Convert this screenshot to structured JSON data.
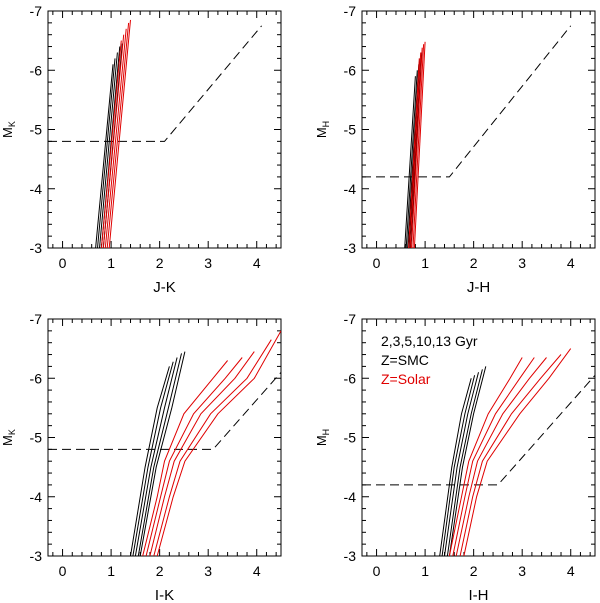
{
  "figure": {
    "legend_lines": [
      {
        "text": "2,3,5,10,13 Gyr",
        "color": "#000000"
      },
      {
        "text": "Z=SMC",
        "color": "#000000"
      },
      {
        "text": "Z=Solar",
        "color": "#e00000"
      }
    ]
  },
  "colors": {
    "smc": "#000000",
    "solar": "#e00000",
    "dashed": "#000000",
    "axis": "#000000"
  },
  "chart_data": [
    {
      "type": "line",
      "panel": "top-left",
      "xlabel": "J-K",
      "ylabel_main": "M",
      "ylabel_sub": "K",
      "xlim": [
        -0.3,
        4.5
      ],
      "ylim": [
        -3,
        -7
      ],
      "xticks": [
        0,
        1,
        2,
        3,
        4
      ],
      "yticks": [
        -3,
        -4,
        -5,
        -6,
        -7
      ],
      "series": [
        {
          "name": "SMC 2 Gyr",
          "group": "smc",
          "x": [
            0.68,
            1.04
          ],
          "y": [
            -3,
            -6.1
          ]
        },
        {
          "name": "SMC 3 Gyr",
          "group": "smc",
          "x": [
            0.72,
            1.08
          ],
          "y": [
            -3,
            -6.2
          ]
        },
        {
          "name": "SMC 5 Gyr",
          "group": "smc",
          "x": [
            0.76,
            1.13
          ],
          "y": [
            -3,
            -6.3
          ]
        },
        {
          "name": "SMC 10 Gyr",
          "group": "smc",
          "x": [
            0.8,
            1.18
          ],
          "y": [
            -3,
            -6.4
          ]
        },
        {
          "name": "SMC 13 Gyr",
          "group": "smc",
          "x": [
            0.84,
            1.23
          ],
          "y": [
            -3,
            -6.45
          ]
        },
        {
          "name": "Solar 2 Gyr",
          "group": "solar",
          "x": [
            0.8,
            1.21
          ],
          "y": [
            -3,
            -6.5
          ]
        },
        {
          "name": "Solar 3 Gyr",
          "group": "solar",
          "x": [
            0.84,
            1.26
          ],
          "y": [
            -3,
            -6.6
          ]
        },
        {
          "name": "Solar 5 Gyr",
          "group": "solar",
          "x": [
            0.88,
            1.31
          ],
          "y": [
            -3,
            -6.7
          ]
        },
        {
          "name": "Solar 10 Gyr",
          "group": "solar",
          "x": [
            0.92,
            1.36
          ],
          "y": [
            -3,
            -6.8
          ]
        },
        {
          "name": "Solar 13 Gyr",
          "group": "solar",
          "x": [
            0.96,
            1.4
          ],
          "y": [
            -3,
            -6.85
          ]
        }
      ],
      "dashed_limit": {
        "x": [
          -0.3,
          2.1,
          4.1
        ],
        "y": [
          -4.8,
          -4.8,
          -6.75
        ]
      }
    },
    {
      "type": "line",
      "panel": "top-right",
      "xlabel": "J-H",
      "ylabel_main": "M",
      "ylabel_sub": "H",
      "xlim": [
        -0.3,
        4.5
      ],
      "ylim": [
        -3,
        -7
      ],
      "xticks": [
        0,
        1,
        2,
        3,
        4
      ],
      "yticks": [
        -3,
        -4,
        -5,
        -6,
        -7
      ],
      "series": [
        {
          "name": "SMC 2 Gyr",
          "group": "smc",
          "x": [
            0.58,
            0.8
          ],
          "y": [
            -3,
            -5.9
          ]
        },
        {
          "name": "SMC 3 Gyr",
          "group": "smc",
          "x": [
            0.61,
            0.84
          ],
          "y": [
            -3,
            -6.0
          ]
        },
        {
          "name": "SMC 5 Gyr",
          "group": "smc",
          "x": [
            0.64,
            0.87
          ],
          "y": [
            -3,
            -6.1
          ]
        },
        {
          "name": "SMC 10 Gyr",
          "group": "smc",
          "x": [
            0.67,
            0.9
          ],
          "y": [
            -3,
            -6.2
          ]
        },
        {
          "name": "SMC 13 Gyr",
          "group": "smc",
          "x": [
            0.7,
            0.93
          ],
          "y": [
            -3,
            -6.3
          ]
        },
        {
          "name": "Solar 2 Gyr",
          "group": "solar",
          "x": [
            0.66,
            0.88
          ],
          "y": [
            -3,
            -6.2
          ]
        },
        {
          "name": "Solar 3 Gyr",
          "group": "solar",
          "x": [
            0.69,
            0.91
          ],
          "y": [
            -3,
            -6.3
          ]
        },
        {
          "name": "Solar 5 Gyr",
          "group": "solar",
          "x": [
            0.72,
            0.94
          ],
          "y": [
            -3,
            -6.38
          ]
        },
        {
          "name": "Solar 10 Gyr",
          "group": "solar",
          "x": [
            0.75,
            0.97
          ],
          "y": [
            -3,
            -6.44
          ]
        },
        {
          "name": "Solar 13 Gyr",
          "group": "solar",
          "x": [
            0.78,
            1.0
          ],
          "y": [
            -3,
            -6.48
          ]
        }
      ],
      "dashed_limit": {
        "x": [
          -0.3,
          1.5,
          4.0
        ],
        "y": [
          -4.2,
          -4.2,
          -6.75
        ]
      }
    },
    {
      "type": "line",
      "panel": "bottom-left",
      "xlabel": "I-K",
      "ylabel_main": "M",
      "ylabel_sub": "K",
      "xlim": [
        -0.3,
        4.5
      ],
      "ylim": [
        -3,
        -7
      ],
      "xticks": [
        0,
        1,
        2,
        3,
        4
      ],
      "yticks": [
        -3,
        -4,
        -5,
        -6,
        -7
      ],
      "series": [
        {
          "name": "SMC 2 Gyr",
          "group": "smc",
          "x": [
            1.4,
            1.7,
            1.95,
            2.2
          ],
          "y": [
            -3,
            -4.5,
            -5.5,
            -6.2
          ]
        },
        {
          "name": "SMC 3 Gyr",
          "group": "smc",
          "x": [
            1.45,
            1.76,
            2.02,
            2.28
          ],
          "y": [
            -3,
            -4.5,
            -5.5,
            -6.28
          ]
        },
        {
          "name": "SMC 5 Gyr",
          "group": "smc",
          "x": [
            1.5,
            1.82,
            2.1,
            2.36
          ],
          "y": [
            -3,
            -4.5,
            -5.5,
            -6.35
          ]
        },
        {
          "name": "SMC 10 Gyr",
          "group": "smc",
          "x": [
            1.56,
            1.88,
            2.18,
            2.45
          ],
          "y": [
            -3,
            -4.5,
            -5.5,
            -6.42
          ]
        },
        {
          "name": "SMC 13 Gyr",
          "group": "smc",
          "x": [
            1.6,
            1.93,
            2.25,
            2.52
          ],
          "y": [
            -3,
            -4.5,
            -5.5,
            -6.45
          ]
        },
        {
          "name": "Solar 2 Gyr",
          "group": "solar",
          "x": [
            1.65,
            1.95,
            2.1,
            2.5,
            3.1,
            3.4
          ],
          "y": [
            -3,
            -4.0,
            -4.6,
            -5.4,
            -6.0,
            -6.3
          ]
        },
        {
          "name": "Solar 3 Gyr",
          "group": "solar",
          "x": [
            1.72,
            2.02,
            2.2,
            2.7,
            3.35,
            3.7
          ],
          "y": [
            -3,
            -4.0,
            -4.6,
            -5.4,
            -6.0,
            -6.35
          ]
        },
        {
          "name": "Solar 5 Gyr",
          "group": "solar",
          "x": [
            1.8,
            2.1,
            2.3,
            2.85,
            3.55,
            3.95
          ],
          "y": [
            -3,
            -4.0,
            -4.6,
            -5.4,
            -6.0,
            -6.45
          ]
        },
        {
          "name": "Solar 10 Gyr",
          "group": "solar",
          "x": [
            1.88,
            2.2,
            2.42,
            3.05,
            3.8,
            4.3
          ],
          "y": [
            -3,
            -4.0,
            -4.6,
            -5.4,
            -6.0,
            -6.65
          ]
        },
        {
          "name": "Solar 13 Gyr",
          "group": "solar",
          "x": [
            1.95,
            2.28,
            2.52,
            3.2,
            3.95,
            4.5
          ],
          "y": [
            -3,
            -4.0,
            -4.6,
            -5.4,
            -6.0,
            -6.8
          ]
        }
      ],
      "dashed_limit": {
        "x": [
          -0.3,
          3.1,
          4.5
        ],
        "y": [
          -4.8,
          -4.8,
          -6.1
        ]
      }
    },
    {
      "type": "line",
      "panel": "bottom-right",
      "xlabel": "I-H",
      "ylabel_main": "M",
      "ylabel_sub": "H",
      "xlim": [
        -0.3,
        4.5
      ],
      "ylim": [
        -3,
        -7
      ],
      "xticks": [
        0,
        1,
        2,
        3,
        4
      ],
      "yticks": [
        -3,
        -4,
        -5,
        -6,
        -7
      ],
      "series": [
        {
          "name": "SMC 2 Gyr",
          "group": "smc",
          "x": [
            1.3,
            1.55,
            1.75,
            1.95
          ],
          "y": [
            -3,
            -4.5,
            -5.4,
            -6.0
          ]
        },
        {
          "name": "SMC 3 Gyr",
          "group": "smc",
          "x": [
            1.35,
            1.6,
            1.82,
            2.02
          ],
          "y": [
            -3,
            -4.5,
            -5.4,
            -6.05
          ]
        },
        {
          "name": "SMC 5 Gyr",
          "group": "smc",
          "x": [
            1.4,
            1.66,
            1.88,
            2.1
          ],
          "y": [
            -3,
            -4.5,
            -5.4,
            -6.1
          ]
        },
        {
          "name": "SMC 10 Gyr",
          "group": "smc",
          "x": [
            1.46,
            1.72,
            1.95,
            2.18
          ],
          "y": [
            -3,
            -4.5,
            -5.4,
            -6.15
          ]
        },
        {
          "name": "SMC 13 Gyr",
          "group": "smc",
          "x": [
            1.5,
            1.77,
            2.0,
            2.25
          ],
          "y": [
            -3,
            -4.5,
            -5.4,
            -6.2
          ]
        },
        {
          "name": "Solar 2 Gyr",
          "group": "solar",
          "x": [
            1.5,
            1.75,
            1.9,
            2.3,
            2.75,
            3.0
          ],
          "y": [
            -3,
            -4.0,
            -4.6,
            -5.4,
            -6.0,
            -6.35
          ]
        },
        {
          "name": "Solar 3 Gyr",
          "group": "solar",
          "x": [
            1.57,
            1.82,
            1.98,
            2.45,
            2.95,
            3.25
          ],
          "y": [
            -3,
            -4.0,
            -4.6,
            -5.4,
            -6.0,
            -6.35
          ]
        },
        {
          "name": "Solar 5 Gyr",
          "group": "solar",
          "x": [
            1.64,
            1.9,
            2.08,
            2.6,
            3.15,
            3.5
          ],
          "y": [
            -3,
            -4.0,
            -4.6,
            -5.4,
            -6.0,
            -6.35
          ]
        },
        {
          "name": "Solar 10 Gyr",
          "group": "solar",
          "x": [
            1.72,
            1.98,
            2.18,
            2.78,
            3.38,
            3.8
          ],
          "y": [
            -3,
            -4.0,
            -4.6,
            -5.4,
            -6.0,
            -6.4
          ]
        },
        {
          "name": "Solar 13 Gyr",
          "group": "solar",
          "x": [
            1.8,
            2.06,
            2.28,
            2.95,
            3.55,
            4.0
          ],
          "y": [
            -3,
            -4.0,
            -4.6,
            -5.4,
            -6.0,
            -6.5
          ]
        }
      ],
      "dashed_limit": {
        "x": [
          -0.3,
          2.5,
          4.5
        ],
        "y": [
          -4.2,
          -4.2,
          -6.05
        ]
      }
    }
  ]
}
